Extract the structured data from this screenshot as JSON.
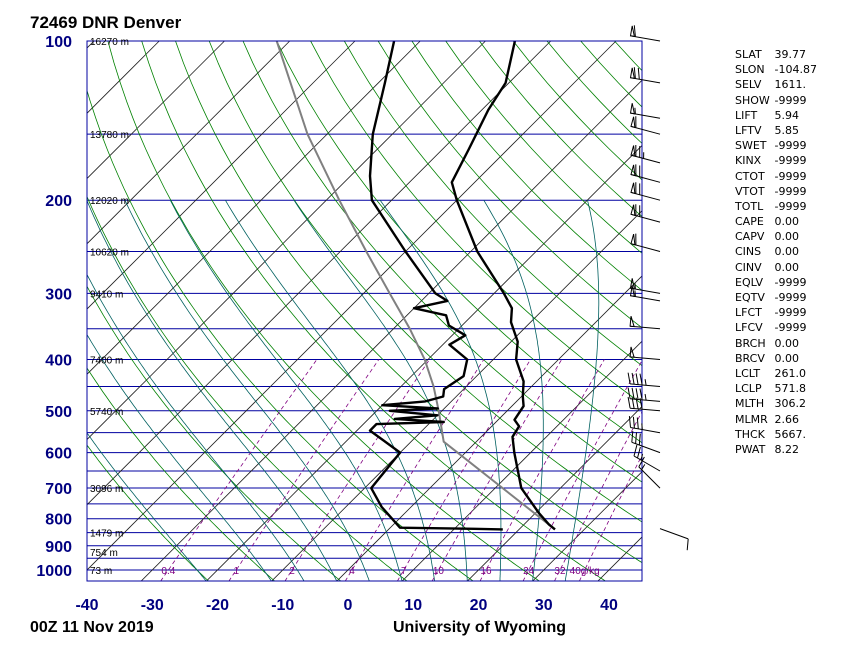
{
  "header": {
    "title": "72469 DNR Denver",
    "time": "00Z 11 Nov 2019",
    "source": "University of Wyoming"
  },
  "colors": {
    "isobar": "#0000a0",
    "isotherm": "#202020",
    "dry_adiabat": "#008000",
    "moist_adiabat": "#006060",
    "mixing_ratio": "#800080",
    "parcel": "#808080",
    "sounding": "#000000",
    "label_blue": "#000080"
  },
  "chart_data": {
    "type": "skew-t",
    "xlabel": "",
    "ylabel": "",
    "x_ticks": [
      "-40",
      "-30",
      "-20",
      "-10",
      "0",
      "10",
      "20",
      "30",
      "40"
    ],
    "x_tick_values": [
      -40,
      -30,
      -20,
      -10,
      0,
      10,
      20,
      30,
      40
    ],
    "y_ticks": [
      "100",
      "200",
      "300",
      "400",
      "500",
      "600",
      "700",
      "800",
      "900",
      "1000"
    ],
    "y_tick_values": [
      100,
      200,
      300,
      400,
      500,
      600,
      700,
      800,
      900,
      1000
    ],
    "xlim": [
      -40,
      45
    ],
    "ylim": [
      1050,
      100
    ],
    "height_labels": [
      {
        "text": "16270 m",
        "p": 100
      },
      {
        "text": "13780 m",
        "p": 150
      },
      {
        "text": "12020 m",
        "p": 200
      },
      {
        "text": "10620 m",
        "p": 250
      },
      {
        "text": "9410 m",
        "p": 300
      },
      {
        "text": "7400 m",
        "p": 400
      },
      {
        "text": "5740 m",
        "p": 500
      },
      {
        "text": "3096 m",
        "p": 700
      },
      {
        "text": "1479 m",
        "p": 850
      },
      {
        "text": "754 m",
        "p": 925
      },
      {
        "text": "73 m",
        "p": 1000
      }
    ],
    "mixing_ratio_labels": [
      "0.4",
      "1",
      "2",
      "4",
      "7",
      "10",
      "16",
      "24",
      "32",
      "40g/kg"
    ],
    "mixing_ratio_values": [
      0.4,
      1,
      2,
      4,
      7,
      10,
      16,
      24,
      32,
      40
    ],
    "temperature": [
      {
        "p": 838,
        "t": 25.5
      },
      {
        "p": 820,
        "t": 23.8
      },
      {
        "p": 780,
        "t": 20.5
      },
      {
        "p": 700,
        "t": 14.0
      },
      {
        "p": 600,
        "t": 7.5
      },
      {
        "p": 560,
        "t": 4.8
      },
      {
        "p": 535,
        "t": 4.2
      },
      {
        "p": 520,
        "t": 2.5
      },
      {
        "p": 490,
        "t": 1.8
      },
      {
        "p": 470,
        "t": 0.2
      },
      {
        "p": 440,
        "t": -2.0
      },
      {
        "p": 400,
        "t": -6.5
      },
      {
        "p": 370,
        "t": -9.0
      },
      {
        "p": 340,
        "t": -13.0
      },
      {
        "p": 320,
        "t": -15.0
      },
      {
        "p": 300,
        "t": -18.5
      },
      {
        "p": 250,
        "t": -29.0
      },
      {
        "p": 200,
        "t": -40.0
      },
      {
        "p": 185,
        "t": -43.5
      },
      {
        "p": 160,
        "t": -46.0
      },
      {
        "p": 135,
        "t": -49.0
      },
      {
        "p": 120,
        "t": -50.5
      },
      {
        "p": 100,
        "t": -55.5
      }
    ],
    "dewpoint": [
      {
        "p": 838,
        "t": 17.5
      },
      {
        "p": 836,
        "t": 13.0
      },
      {
        "p": 832,
        "t": 1.5
      },
      {
        "p": 760,
        "t": -4.5
      },
      {
        "p": 700,
        "t": -9.0
      },
      {
        "p": 600,
        "t": -10.0
      },
      {
        "p": 545,
        "t": -18.0
      },
      {
        "p": 530,
        "t": -18.0
      },
      {
        "p": 525,
        "t": -8.0
      },
      {
        "p": 518,
        "t": -16.0
      },
      {
        "p": 510,
        "t": -10.0
      },
      {
        "p": 500,
        "t": -18.0
      },
      {
        "p": 495,
        "t": -11.0
      },
      {
        "p": 488,
        "t": -20.0
      },
      {
        "p": 480,
        "t": -14.0
      },
      {
        "p": 470,
        "t": -12.0
      },
      {
        "p": 455,
        "t": -13.0
      },
      {
        "p": 430,
        "t": -12.0
      },
      {
        "p": 400,
        "t": -14.0
      },
      {
        "p": 375,
        "t": -19.0
      },
      {
        "p": 360,
        "t": -18.0
      },
      {
        "p": 345,
        "t": -22.0
      },
      {
        "p": 330,
        "t": -24.0
      },
      {
        "p": 320,
        "t": -30.0
      },
      {
        "p": 310,
        "t": -26.0
      },
      {
        "p": 300,
        "t": -29.0
      },
      {
        "p": 250,
        "t": -40.0
      },
      {
        "p": 200,
        "t": -53.0
      },
      {
        "p": 180,
        "t": -57.0
      },
      {
        "p": 150,
        "t": -63.0
      },
      {
        "p": 120,
        "t": -69.0
      },
      {
        "p": 100,
        "t": -74.0
      }
    ],
    "parcel": [
      {
        "p": 838,
        "t": 25.5
      },
      {
        "p": 572,
        "t": -5.0
      },
      {
        "p": 500,
        "t": -10.5
      },
      {
        "p": 450,
        "t": -15.0
      },
      {
        "p": 400,
        "t": -20.5
      },
      {
        "p": 350,
        "t": -27.5
      },
      {
        "p": 300,
        "t": -36.0
      },
      {
        "p": 250,
        "t": -46.0
      },
      {
        "p": 200,
        "t": -58.0
      },
      {
        "p": 150,
        "t": -73.0
      },
      {
        "p": 100,
        "t": -92.0
      }
    ],
    "wind_barbs": [
      {
        "p": 100,
        "dir": 280,
        "spd": 60
      },
      {
        "p": 120,
        "dir": 280,
        "spd": 70
      },
      {
        "p": 140,
        "dir": 280,
        "spd": 55
      },
      {
        "p": 150,
        "dir": 285,
        "spd": 60
      },
      {
        "p": 170,
        "dir": 285,
        "spd": 75
      },
      {
        "p": 185,
        "dir": 285,
        "spd": 70
      },
      {
        "p": 200,
        "dir": 285,
        "spd": 70
      },
      {
        "p": 220,
        "dir": 285,
        "spd": 70
      },
      {
        "p": 250,
        "dir": 285,
        "spd": 60
      },
      {
        "p": 300,
        "dir": 280,
        "spd": 55
      },
      {
        "p": 310,
        "dir": 280,
        "spd": 55
      },
      {
        "p": 350,
        "dir": 275,
        "spd": 50
      },
      {
        "p": 400,
        "dir": 275,
        "spd": 50
      },
      {
        "p": 450,
        "dir": 275,
        "spd": 45
      },
      {
        "p": 480,
        "dir": 275,
        "spd": 45
      },
      {
        "p": 500,
        "dir": 275,
        "spd": 40
      },
      {
        "p": 550,
        "dir": 280,
        "spd": 35
      },
      {
        "p": 600,
        "dir": 290,
        "spd": 30
      },
      {
        "p": 650,
        "dir": 300,
        "spd": 25
      },
      {
        "p": 700,
        "dir": 315,
        "spd": 15
      },
      {
        "p": 835,
        "dir": 110,
        "spd": 10
      }
    ]
  },
  "stats": [
    {
      "key": "SLAT",
      "val": "39.77"
    },
    {
      "key": "SLON",
      "val": "-104.87"
    },
    {
      "key": "SELV",
      "val": "1611."
    },
    {
      "key": "SHOW",
      "val": "-9999"
    },
    {
      "key": "LIFT",
      "val": "5.94"
    },
    {
      "key": "LFTV",
      "val": "5.85"
    },
    {
      "key": "SWET",
      "val": "-9999"
    },
    {
      "key": "KINX",
      "val": "-9999"
    },
    {
      "key": "CTOT",
      "val": "-9999"
    },
    {
      "key": "VTOT",
      "val": "-9999"
    },
    {
      "key": "TOTL",
      "val": "-9999"
    },
    {
      "key": "CAPE",
      "val": "0.00"
    },
    {
      "key": "CAPV",
      "val": "0.00"
    },
    {
      "key": "CINS",
      "val": "0.00"
    },
    {
      "key": "CINV",
      "val": "0.00"
    },
    {
      "key": "EQLV",
      "val": "-9999"
    },
    {
      "key": "EQTV",
      "val": "-9999"
    },
    {
      "key": "LFCT",
      "val": "-9999"
    },
    {
      "key": "LFCV",
      "val": "-9999"
    },
    {
      "key": "BRCH",
      "val": "0.00"
    },
    {
      "key": "BRCV",
      "val": "0.00"
    },
    {
      "key": "LCLT",
      "val": "261.0"
    },
    {
      "key": "LCLP",
      "val": "571.8"
    },
    {
      "key": "MLTH",
      "val": "306.2"
    },
    {
      "key": "MLMR",
      "val": "2.66"
    },
    {
      "key": "THCK",
      "val": "5667."
    },
    {
      "key": "PWAT",
      "val": "8.22"
    }
  ]
}
